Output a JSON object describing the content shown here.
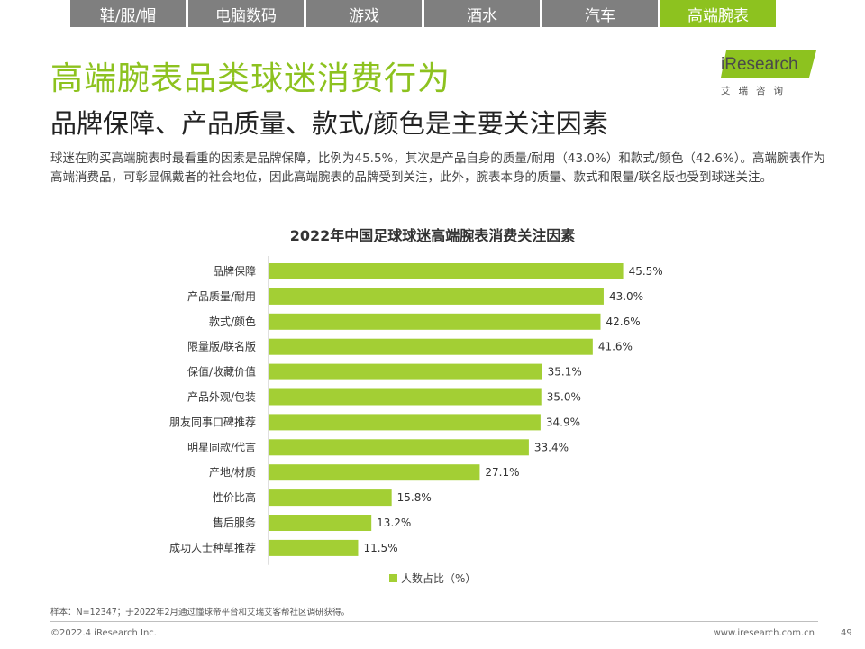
{
  "nav": {
    "tabs": [
      {
        "label": "鞋/服/帽",
        "active": false
      },
      {
        "label": "电脑数码",
        "active": false
      },
      {
        "label": "游戏",
        "active": false
      },
      {
        "label": "酒水",
        "active": false
      },
      {
        "label": "汽车",
        "active": false
      },
      {
        "label": "高端腕表",
        "active": true
      }
    ]
  },
  "header": {
    "title": "高端腕表品类球迷消费行为",
    "subtitle": "品牌保障、产品质量、款式/颜色是主要关注因素",
    "description": "球迷在购买高端腕表时最看重的因素是品牌保障，比例为45.5%，其次是产品自身的质量/耐用（43.0%）和款式/颜色（42.6%）。高端腕表作为高端消费品，可彰显佩戴者的社会地位，因此高端腕表的品牌受到关注，此外，腕表本身的质量、款式和限量/联名版也受到球迷关注。"
  },
  "logo": {
    "word": "iResearch",
    "cn": "艾瑞咨询"
  },
  "colors": {
    "accent": "#8dc21f",
    "bar": "#a3cf34",
    "tab_inactive": "#7f7f7f"
  },
  "chart_data": {
    "type": "bar",
    "orientation": "horizontal",
    "title": "2022年中国足球球迷高端腕表消费关注因素",
    "categories": [
      "品牌保障",
      "产品质量/耐用",
      "款式/颜色",
      "限量版/联名版",
      "保值/收藏价值",
      "产品外观/包装",
      "朋友同事口碑推荐",
      "明星同款/代言",
      "产地/材质",
      "性价比高",
      "售后服务",
      "成功人士种草推荐"
    ],
    "values": [
      45.5,
      43.0,
      42.6,
      41.6,
      35.1,
      35.0,
      34.9,
      33.4,
      27.1,
      15.8,
      13.2,
      11.5
    ],
    "value_labels": [
      "45.5%",
      "43.0%",
      "42.6%",
      "41.6%",
      "35.1%",
      "35.0%",
      "34.9%",
      "33.4%",
      "27.1%",
      "15.8%",
      "13.2%",
      "11.5%"
    ],
    "series": [
      {
        "name": "人数占比（%）"
      }
    ],
    "legend_position": "bottom",
    "grid": false
  },
  "footer": {
    "note": "样本：N=12347；于2022年2月通过懂球帝平台和艾瑞艾客帮社区调研获得。",
    "copyright": "©2022.4 iResearch Inc.",
    "url": "www.iresearch.com.cn",
    "page": "49"
  }
}
